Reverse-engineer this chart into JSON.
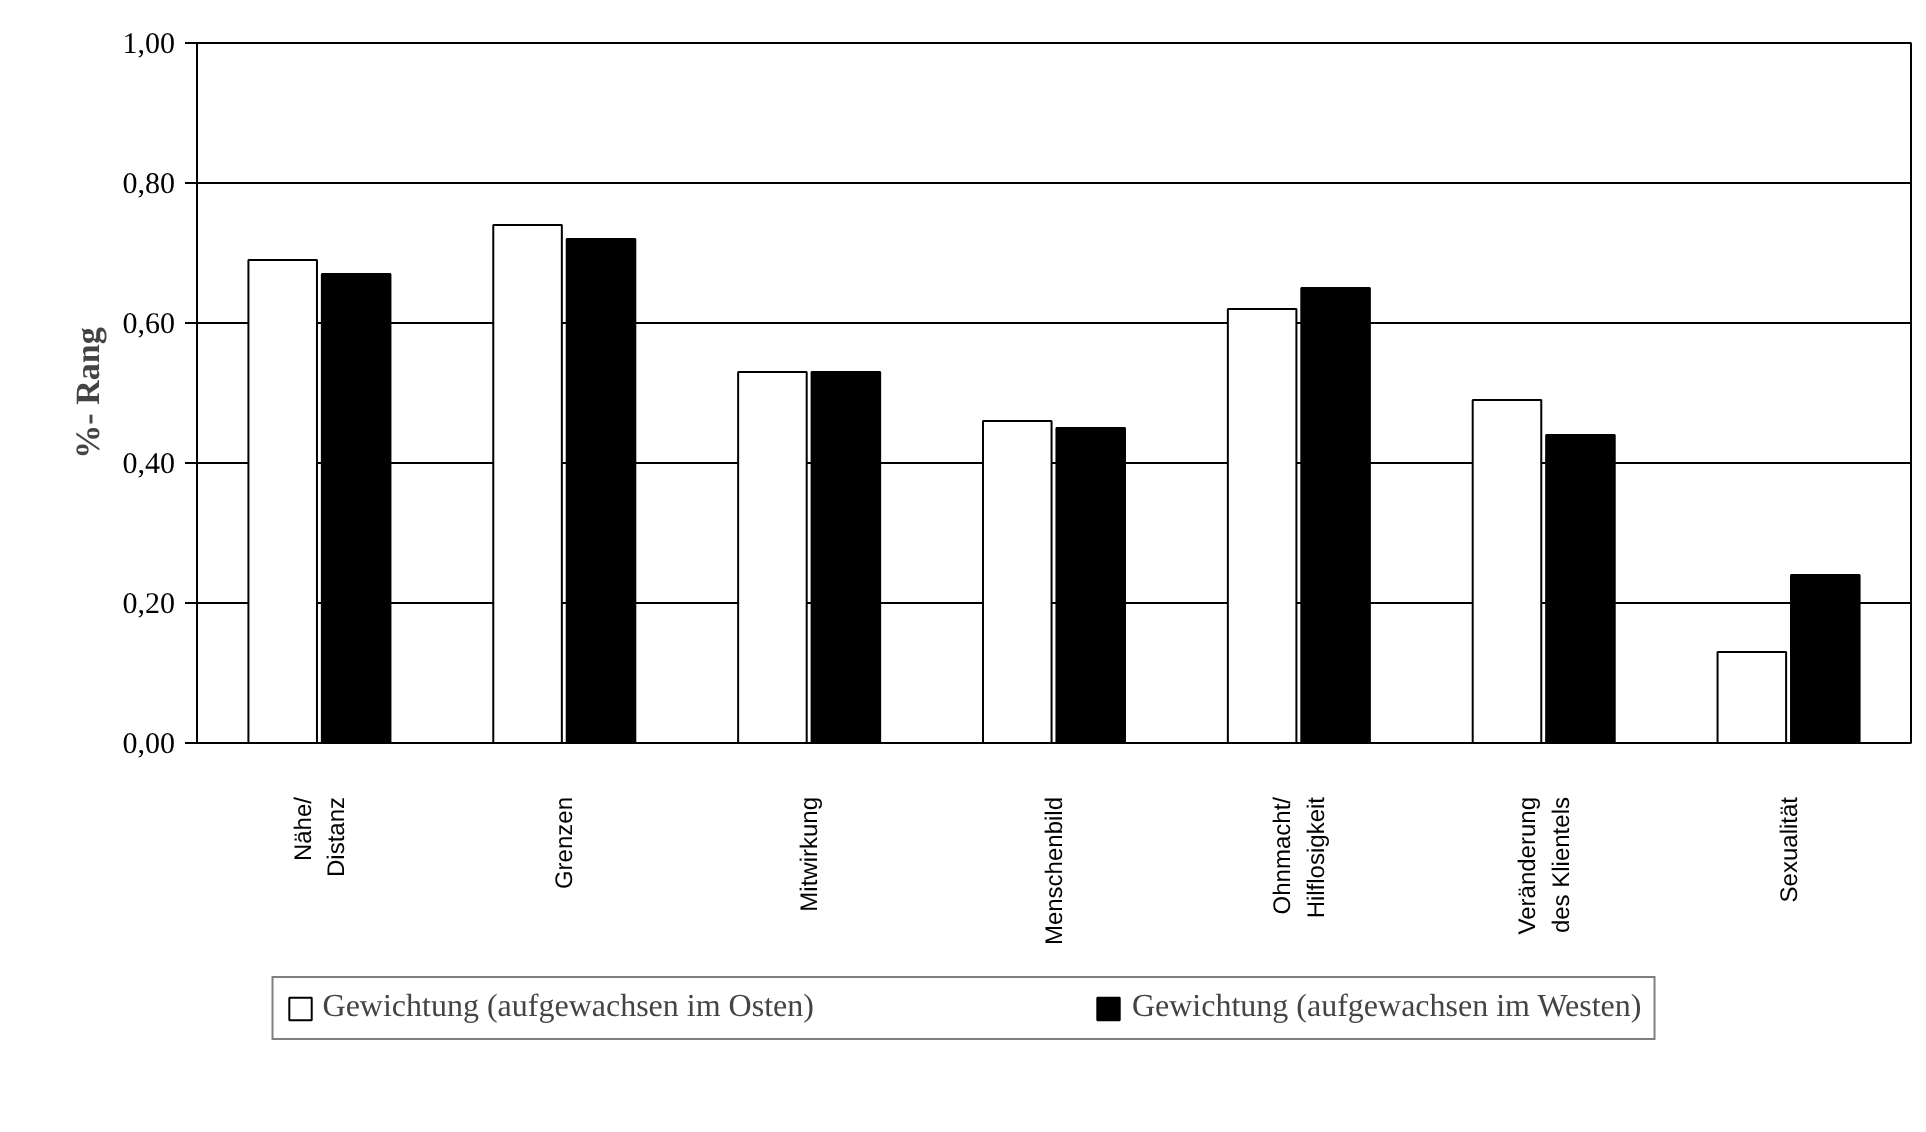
{
  "chart_data": {
    "type": "bar",
    "ylabel": "%- Rang",
    "categories": [
      "Nähe/\nDistanz",
      "Grenzen",
      "Mitwirkung",
      "Menschenbild",
      "Ohnmacht/\nHilflosigkeit",
      "Veränderung\ndes Klientels",
      "Sexualität"
    ],
    "series": [
      {
        "name": "Gewichtung (aufgewachsen im Osten)",
        "color": "#ffffff",
        "values": [
          0.69,
          0.74,
          0.53,
          0.46,
          0.62,
          0.49,
          0.13
        ]
      },
      {
        "name": "Gewichtung (aufgewachsen im Westen)",
        "color": "#000000",
        "values": [
          0.67,
          0.72,
          0.53,
          0.45,
          0.65,
          0.44,
          0.24
        ]
      }
    ],
    "ylim": [
      0,
      1
    ],
    "yticks": [
      {
        "value": 0,
        "label": "0,00"
      },
      {
        "value": 0.2,
        "label": "0,20"
      },
      {
        "value": 0.4,
        "label": "0,40"
      },
      {
        "value": 0.6,
        "label": "0,60"
      },
      {
        "value": 0.8,
        "label": "0,80"
      },
      {
        "value": 1,
        "label": "1,00"
      }
    ],
    "grid": "y",
    "legend": "bottom"
  }
}
